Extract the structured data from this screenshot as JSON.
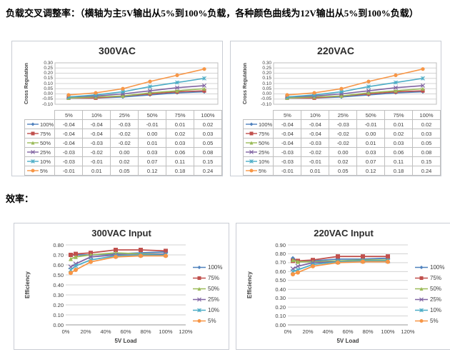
{
  "page": {
    "heading_cross_regulation": "负载交叉调整率：（横轴为主5V输出从5%到100%负载，各种颜色曲线为12V输出从5%到100%负载）",
    "heading_efficiency": "效率："
  },
  "chart_data": [
    {
      "type": "line",
      "layout": "table",
      "title": "300VAC",
      "ylabel": "Cross Regulation",
      "ylim": [
        -0.1,
        0.3
      ],
      "ytick_step": 0.05,
      "grid": true,
      "legend_position": "table-left",
      "categories": [
        "5%",
        "10%",
        "25%",
        "50%",
        "75%",
        "100%"
      ],
      "series": [
        {
          "name": "100%",
          "marker": "diamond",
          "color": "#4F81BD",
          "values": [
            -0.04,
            -0.04,
            -0.03,
            -0.01,
            0.01,
            0.02
          ]
        },
        {
          "name": "75%",
          "marker": "square",
          "color": "#C0504D",
          "values": [
            -0.04,
            -0.04,
            -0.02,
            0.0,
            0.02,
            0.03
          ]
        },
        {
          "name": "50%",
          "marker": "triangle",
          "color": "#9BBB59",
          "values": [
            -0.04,
            -0.03,
            -0.02,
            0.01,
            0.03,
            0.05
          ]
        },
        {
          "name": "25%",
          "marker": "x",
          "color": "#8064A2",
          "values": [
            -0.03,
            -0.02,
            0.0,
            0.03,
            0.06,
            0.08
          ]
        },
        {
          "name": "10%",
          "marker": "asterisk",
          "color": "#4BACC6",
          "values": [
            -0.03,
            -0.01,
            0.02,
            0.07,
            0.11,
            0.15
          ]
        },
        {
          "name": "5%",
          "marker": "circle",
          "color": "#F79646",
          "values": [
            -0.01,
            0.01,
            0.05,
            0.12,
            0.18,
            0.24
          ]
        }
      ]
    },
    {
      "type": "line",
      "layout": "table",
      "title": "220VAC",
      "ylabel": "Cross Regulation",
      "ylim": [
        -0.1,
        0.3
      ],
      "ytick_step": 0.05,
      "grid": true,
      "legend_position": "table-left",
      "categories": [
        "5%",
        "10%",
        "25%",
        "50%",
        "75%",
        "100%"
      ],
      "series": [
        {
          "name": "100%",
          "marker": "diamond",
          "color": "#4F81BD",
          "values": [
            -0.04,
            -0.04,
            -0.03,
            -0.01,
            0.01,
            0.02
          ]
        },
        {
          "name": "75%",
          "marker": "square",
          "color": "#C0504D",
          "values": [
            -0.04,
            -0.04,
            -0.02,
            0.0,
            0.02,
            0.03
          ]
        },
        {
          "name": "50%",
          "marker": "triangle",
          "color": "#9BBB59",
          "values": [
            -0.04,
            -0.03,
            -0.02,
            0.01,
            0.03,
            0.05
          ]
        },
        {
          "name": "25%",
          "marker": "x",
          "color": "#8064A2",
          "values": [
            -0.03,
            -0.02,
            0.0,
            0.03,
            0.06,
            0.08
          ]
        },
        {
          "name": "10%",
          "marker": "asterisk",
          "color": "#4BACC6",
          "values": [
            -0.03,
            -0.01,
            0.02,
            0.07,
            0.11,
            0.15
          ]
        },
        {
          "name": "5%",
          "marker": "circle",
          "color": "#F79646",
          "values": [
            -0.01,
            0.01,
            0.05,
            0.12,
            0.18,
            0.24
          ]
        }
      ]
    },
    {
      "type": "line",
      "layout": "xy",
      "title": "300VAC Input",
      "xlabel": "5V Load",
      "ylabel": "Efficiency",
      "ylim": [
        0,
        0.8
      ],
      "ytick_step": 0.1,
      "xlim": [
        0,
        120
      ],
      "xtick_step": 20,
      "grid": true,
      "legend_position": "right",
      "x": [
        5,
        10,
        25,
        50,
        75,
        100
      ],
      "series": [
        {
          "name": "100%",
          "marker": "diamond",
          "color": "#4F81BD",
          "values": [
            0.7,
            0.7,
            0.7,
            0.71,
            0.72,
            0.73
          ]
        },
        {
          "name": "75%",
          "marker": "square",
          "color": "#C0504D",
          "values": [
            0.7,
            0.71,
            0.72,
            0.75,
            0.75,
            0.74
          ]
        },
        {
          "name": "50%",
          "marker": "triangle",
          "color": "#9BBB59",
          "values": [
            0.66,
            0.68,
            0.7,
            0.72,
            0.71,
            0.71
          ]
        },
        {
          "name": "25%",
          "marker": "x",
          "color": "#8064A2",
          "values": [
            0.58,
            0.61,
            0.68,
            0.7,
            0.7,
            0.71
          ]
        },
        {
          "name": "10%",
          "marker": "asterisk",
          "color": "#4BACC6",
          "values": [
            0.55,
            0.59,
            0.65,
            0.69,
            0.7,
            0.7
          ]
        },
        {
          "name": "5%",
          "marker": "circle",
          "color": "#F79646",
          "values": [
            0.52,
            0.55,
            0.63,
            0.68,
            0.69,
            0.69
          ]
        }
      ]
    },
    {
      "type": "line",
      "layout": "xy",
      "title": "220VAC Input",
      "xlabel": "5V Load",
      "ylabel": "Efficiency",
      "ylim": [
        0,
        0.9
      ],
      "ytick_step": 0.1,
      "xlim": [
        0,
        120
      ],
      "xtick_step": 20,
      "grid": true,
      "legend_position": "right",
      "x": [
        5,
        10,
        25,
        50,
        75,
        100
      ],
      "series": [
        {
          "name": "100%",
          "marker": "diamond",
          "color": "#4F81BD",
          "values": [
            0.75,
            0.72,
            0.72,
            0.74,
            0.74,
            0.75
          ]
        },
        {
          "name": "75%",
          "marker": "square",
          "color": "#C0504D",
          "values": [
            0.72,
            0.72,
            0.73,
            0.77,
            0.77,
            0.77
          ]
        },
        {
          "name": "50%",
          "marker": "triangle",
          "color": "#9BBB59",
          "values": [
            0.73,
            0.71,
            0.71,
            0.72,
            0.73,
            0.73
          ]
        },
        {
          "name": "25%",
          "marker": "x",
          "color": "#8064A2",
          "values": [
            0.63,
            0.66,
            0.7,
            0.71,
            0.72,
            0.72
          ]
        },
        {
          "name": "10%",
          "marker": "asterisk",
          "color": "#4BACC6",
          "values": [
            0.6,
            0.62,
            0.68,
            0.71,
            0.72,
            0.72
          ]
        },
        {
          "name": "5%",
          "marker": "circle",
          "color": "#F79646",
          "values": [
            0.57,
            0.59,
            0.66,
            0.7,
            0.71,
            0.71
          ]
        }
      ]
    }
  ]
}
